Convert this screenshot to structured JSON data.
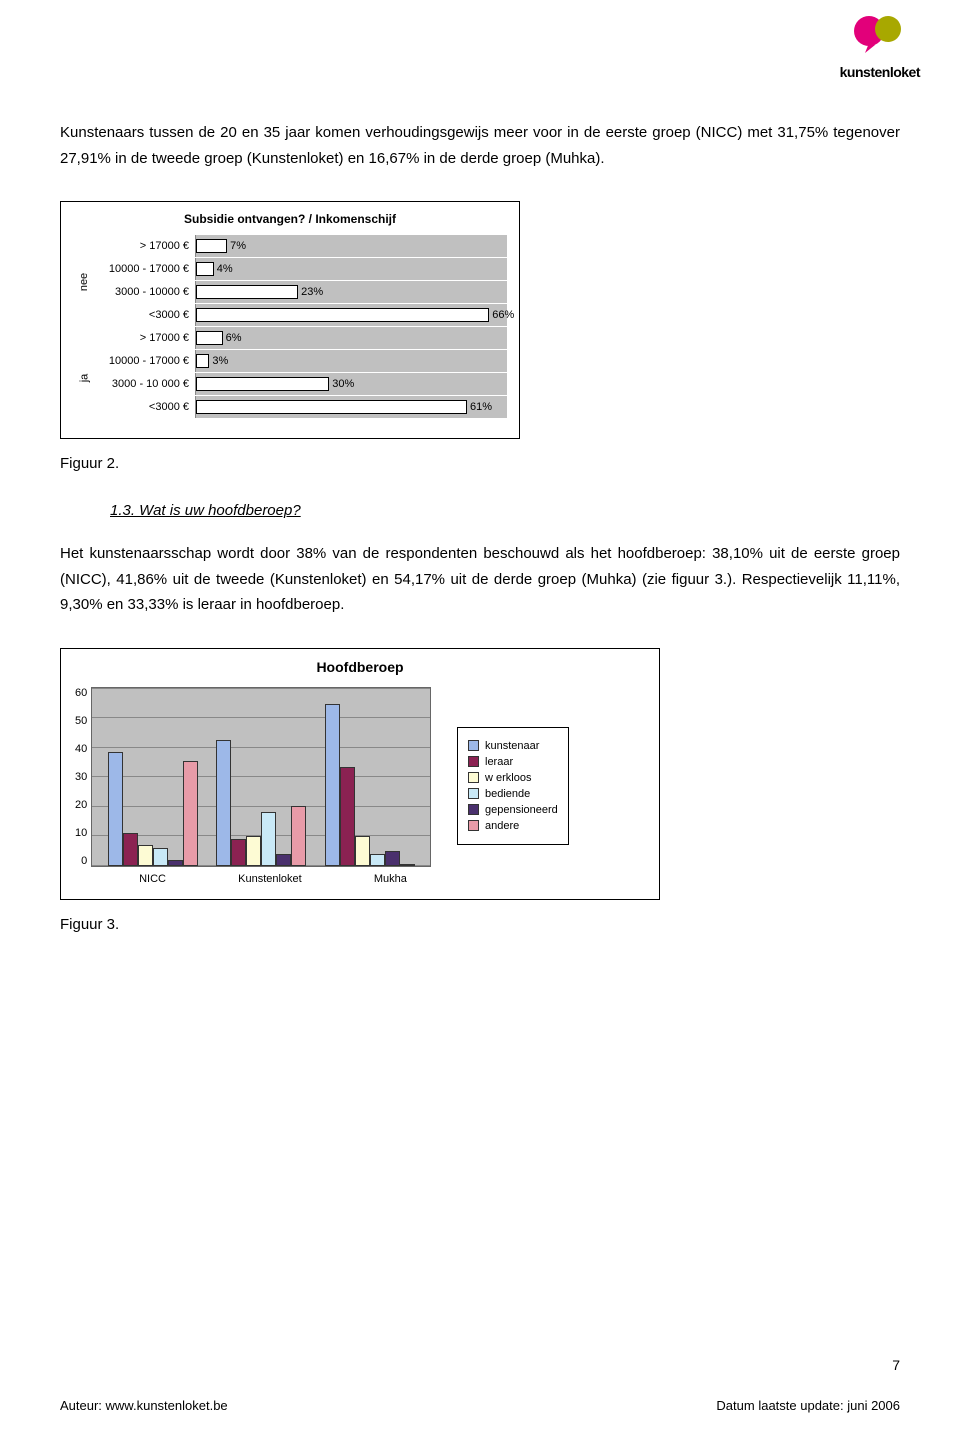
{
  "logo": {
    "text": "kunstenloket",
    "bubble_left": "#e2007a",
    "bubble_right": "#a8a800"
  },
  "paragraph1": "Kunstenaars tussen de 20 en 35 jaar komen verhoudingsgewijs meer voor in de eerste groep (NICC) met 31,75% tegenover 27,91% in de tweede groep (Kunstenloket) en 16,67% in de derde groep (Muhka).",
  "chart1": {
    "title": "Subsidie ontvangen? / Inkomenschijf",
    "type": "horizontal_bar",
    "plot_bg": "#c0c0c0",
    "bar_fill": "#ffffff",
    "bar_border": "#000000",
    "grid_color": "#888888",
    "xmax": 70,
    "groups": [
      {
        "axis_label": "nee",
        "rows": [
          {
            "label": "> 17000 €",
            "value": 7,
            "display": "7%"
          },
          {
            "label": "10000 - 17000 €",
            "value": 4,
            "display": "4%"
          },
          {
            "label": "3000 - 10000 €",
            "value": 23,
            "display": "23%"
          },
          {
            "label": "<3000 €",
            "value": 66,
            "display": "66%"
          }
        ]
      },
      {
        "axis_label": "ja",
        "rows": [
          {
            "label": "> 17000 €",
            "value": 6,
            "display": "6%"
          },
          {
            "label": "10000 - 17000 €",
            "value": 3,
            "display": "3%"
          },
          {
            "label": "3000 - 10 000 €",
            "value": 30,
            "display": "30%"
          },
          {
            "label": "<3000 €",
            "value": 61,
            "display": "61%"
          }
        ]
      }
    ]
  },
  "figure2_label": "Figuur 2.",
  "section_heading": "1.3. Wat is uw hoofdberoep?",
  "paragraph2": "Het kunstenaarsschap wordt door 38% van de respondenten beschouwd als het hoofdberoep: 38,10% uit de eerste groep (NICC), 41,86% uit de tweede (Kunstenloket) en 54,17% uit de derde groep (Muhka) (zie figuur 3.). Respectievelijk 11,11%, 9,30% en 33,33% is leraar in hoofdberoep.",
  "chart2": {
    "title": "Hoofdberoep",
    "type": "grouped_bar",
    "plot_bg": "#c0c0c0",
    "grid_color": "#888888",
    "ymax": 60,
    "ytick_step": 10,
    "yticks": [
      "60",
      "50",
      "40",
      "30",
      "20",
      "10",
      "0"
    ],
    "categories": [
      "NICC",
      "Kunstenloket",
      "Mukha"
    ],
    "series": [
      {
        "name": "kunstenaar",
        "color": "#9db8e8"
      },
      {
        "name": "leraar",
        "color": "#8b2252"
      },
      {
        "name": "w erkloos",
        "color": "#fdfbd4"
      },
      {
        "name": "bediende",
        "color": "#c9e9f7"
      },
      {
        "name": "gepensioneerd",
        "color": "#4a306d"
      },
      {
        "name": "andere",
        "color": "#e89ba8"
      }
    ],
    "data": [
      [
        38,
        11,
        7,
        6,
        2,
        35
      ],
      [
        42,
        9,
        10,
        18,
        4,
        20
      ],
      [
        54,
        33,
        10,
        4,
        5,
        0
      ]
    ]
  },
  "figure3_label": "Figuur 3.",
  "page_number": "7",
  "footer_left": "Auteur: www.kunstenloket.be",
  "footer_right": "Datum laatste update: juni 2006"
}
